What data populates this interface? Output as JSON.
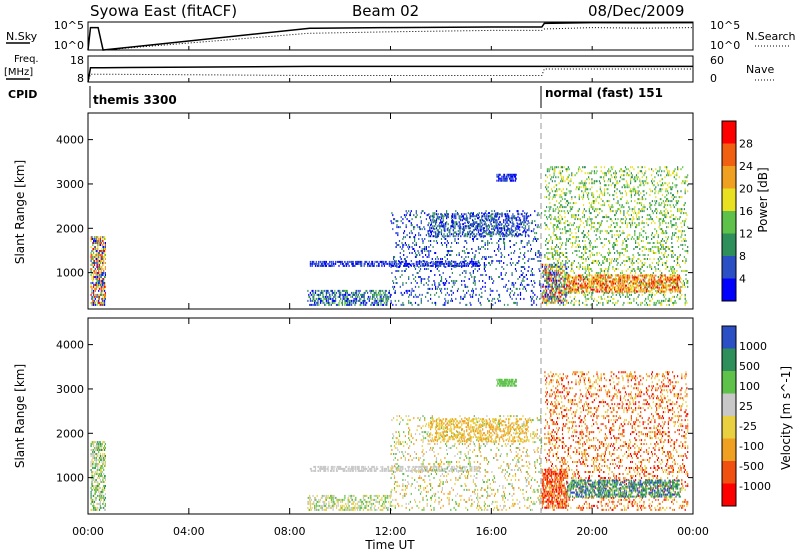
{
  "header": {
    "station": "Syowa East (fitACF)",
    "beam": "Beam 02",
    "date": "08/Dec/2009"
  },
  "chart_data": [
    {
      "type": "line",
      "name_key": "sky_search",
      "left_label": "N.Sky",
      "right_label": "N.Search",
      "left_ticks": [
        "10^5",
        "10^0"
      ],
      "right_ticks": [
        "10^5",
        "10^0"
      ],
      "x_hours": [
        0,
        0.1,
        0.4,
        0.6,
        8.8,
        9,
        12,
        16,
        18,
        18.1,
        20,
        22,
        24
      ],
      "sky": [
        0,
        0.8,
        0.8,
        0,
        0.78,
        0.78,
        0.8,
        0.82,
        0.82,
        0.95,
        0.98,
        0.97,
        0.98
      ],
      "search": [
        0,
        0.8,
        0.8,
        0,
        0.6,
        0.6,
        0.65,
        0.7,
        0.7,
        0.75,
        0.8,
        0.78,
        0.8
      ]
    },
    {
      "type": "line",
      "name_key": "freq_nave",
      "left_label": "Freq.",
      "left_unit": "[MHz]",
      "right_label": "Nave",
      "left_ticks": [
        "18",
        "8"
      ],
      "right_ticks": [
        "60",
        "0"
      ],
      "x_hours": [
        0,
        0.1,
        0.6,
        8.8,
        12,
        18,
        18.1,
        24
      ],
      "freq": [
        0,
        0.55,
        0.55,
        0.6,
        0.6,
        0.6,
        0.6,
        0.6
      ],
      "nave": [
        0,
        0.3,
        0.3,
        0.25,
        0.25,
        0.25,
        0.5,
        0.5
      ]
    },
    {
      "type": "table",
      "name_key": "cpid",
      "label": "CPID",
      "segments": [
        {
          "start": 0,
          "end": 18.1,
          "text": "themis 3300"
        },
        {
          "start": 18.1,
          "end": 24,
          "text": "normal (fast) 151"
        }
      ]
    },
    {
      "type": "heatmap",
      "name_key": "power",
      "ylabel": "Slant Range [km]",
      "yticks": [
        1000,
        2000,
        3000,
        4000
      ],
      "ylim": [
        180,
        4600
      ],
      "xlim": [
        0,
        24
      ],
      "colorbar_label": "Power [dB]",
      "colorbar_ticks": [
        "28",
        "24",
        "20",
        "16",
        "12",
        "8",
        "4"
      ],
      "colors": [
        "#0000ff",
        "#2b4fc4",
        "#2f8f5a",
        "#5ec24a",
        "#e8e020",
        "#f0a020",
        "#f06010",
        "#ff0000"
      ],
      "regions": [
        {
          "x0": 0.1,
          "x1": 0.7,
          "y0": 250,
          "y1": 1800,
          "density": 0.55,
          "cmin": 0,
          "cmax": 7
        },
        {
          "x0": 8.7,
          "x1": 12,
          "y0": 250,
          "y1": 600,
          "density": 0.45,
          "cmin": 0,
          "cmax": 3
        },
        {
          "x0": 8.8,
          "x1": 15.5,
          "y0": 1130,
          "y1": 1230,
          "density": 0.55,
          "cmin": 0,
          "cmax": 1
        },
        {
          "x0": 12,
          "x1": 18,
          "y0": 250,
          "y1": 2400,
          "density": 0.12,
          "cmin": 0,
          "cmax": 2
        },
        {
          "x0": 13.5,
          "x1": 17.5,
          "y0": 1800,
          "y1": 2300,
          "density": 0.35,
          "cmin": 0,
          "cmax": 2
        },
        {
          "x0": 16.2,
          "x1": 17,
          "y0": 3050,
          "y1": 3200,
          "density": 0.7,
          "cmin": 0,
          "cmax": 1
        },
        {
          "x0": 18.1,
          "x1": 23.8,
          "y0": 250,
          "y1": 3400,
          "density": 0.18,
          "cmin": 2,
          "cmax": 4
        },
        {
          "x0": 18,
          "x1": 19,
          "y0": 300,
          "y1": 1200,
          "density": 0.5,
          "cmin": 0,
          "cmax": 7
        },
        {
          "x0": 19,
          "x1": 23.5,
          "y0": 550,
          "y1": 950,
          "density": 0.5,
          "cmin": 4,
          "cmax": 7
        }
      ]
    },
    {
      "type": "heatmap",
      "name_key": "velocity",
      "ylabel": "Slant Range [km]",
      "yticks": [
        1000,
        2000,
        3000,
        4000
      ],
      "ylim": [
        180,
        4600
      ],
      "xlim": [
        0,
        24
      ],
      "xticks": [
        "00:00",
        "04:00",
        "08:00",
        "12:00",
        "16:00",
        "20:00",
        "00:00"
      ],
      "xlabel": "Time UT",
      "colorbar_label": "Velocity [m s^-1]",
      "colorbar_ticks": [
        "1000",
        "500",
        "100",
        "25",
        "-25",
        "-100",
        "-500",
        "-1000"
      ],
      "colors": [
        "#ff0000",
        "#f05010",
        "#f0a020",
        "#e8d040",
        "#c8c8c8",
        "#5ec24a",
        "#2f8f5a",
        "#2b4fc4"
      ],
      "regions": [
        {
          "x0": 0.1,
          "x1": 0.7,
          "y0": 250,
          "y1": 1800,
          "density": 0.5,
          "cmin": 3,
          "cmax": 6
        },
        {
          "x0": 8.7,
          "x1": 12,
          "y0": 250,
          "y1": 600,
          "density": 0.4,
          "cmin": 3,
          "cmax": 5
        },
        {
          "x0": 8.8,
          "x1": 15.5,
          "y0": 1130,
          "y1": 1230,
          "density": 0.55,
          "cmin": 4,
          "cmax": 4
        },
        {
          "x0": 12,
          "x1": 18,
          "y0": 250,
          "y1": 2400,
          "density": 0.12,
          "cmin": 2,
          "cmax": 5
        },
        {
          "x0": 13.5,
          "x1": 17.5,
          "y0": 1800,
          "y1": 2300,
          "density": 0.35,
          "cmin": 2,
          "cmax": 3
        },
        {
          "x0": 16.2,
          "x1": 17,
          "y0": 3050,
          "y1": 3200,
          "density": 0.7,
          "cmin": 5,
          "cmax": 5
        },
        {
          "x0": 18.1,
          "x1": 23.8,
          "y0": 250,
          "y1": 3400,
          "density": 0.18,
          "cmin": 0,
          "cmax": 3
        },
        {
          "x0": 18,
          "x1": 19,
          "y0": 300,
          "y1": 1200,
          "density": 0.5,
          "cmin": 0,
          "cmax": 2
        },
        {
          "x0": 19,
          "x1": 23.5,
          "y0": 550,
          "y1": 950,
          "density": 0.5,
          "cmin": 5,
          "cmax": 7
        }
      ]
    }
  ]
}
